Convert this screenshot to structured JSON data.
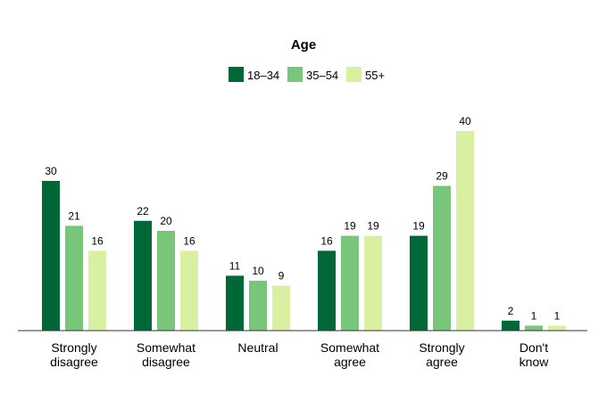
{
  "chart_data": {
    "type": "bar",
    "legend_title": "Age",
    "legend_placement": "top-center",
    "grid": false,
    "categories": [
      [
        "Strongly",
        "disagree"
      ],
      [
        "Somewhat",
        "disagree"
      ],
      [
        "Neutral"
      ],
      [
        "Somewhat",
        "agree"
      ],
      [
        "Strongly",
        "agree"
      ],
      [
        "Don't",
        "know"
      ]
    ],
    "series": [
      {
        "name": "18–34",
        "color": "#006837",
        "values": [
          30,
          22,
          11,
          16,
          19,
          2
        ]
      },
      {
        "name": "35–54",
        "color": "#78c679",
        "values": [
          21,
          20,
          10,
          19,
          29,
          1
        ]
      },
      {
        "name": "55+",
        "color": "#d9f0a3",
        "values": [
          16,
          16,
          9,
          19,
          40,
          1
        ]
      }
    ],
    "ylim": [
      0,
      40
    ],
    "data_labels": true,
    "xlabel": "",
    "ylabel": ""
  }
}
